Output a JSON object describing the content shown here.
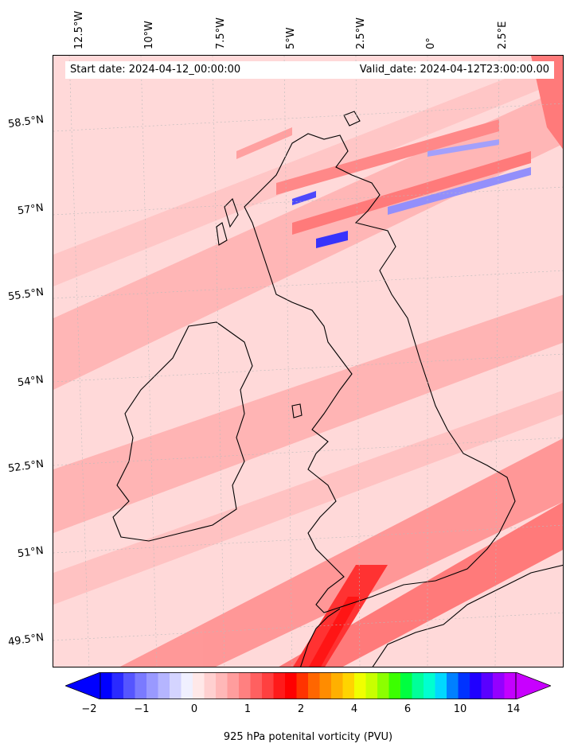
{
  "header": {
    "start_date": "Start date: 2024-04-12_00:00:00",
    "valid_date": "Valid_date: 2024-04-12T23:00:00.00"
  },
  "map": {
    "lon_labels": [
      "12.5°W",
      "10°W",
      "7.5°W",
      "5°W",
      "2.5°W",
      "0°",
      "2.5°E"
    ],
    "lat_labels": [
      "58.5°N",
      "57°N",
      "55.5°N",
      "54°N",
      "52.5°N",
      "51°N",
      "49.5°N"
    ],
    "field": "925 hPa potential vorticity",
    "background_color": "#ffd6d6",
    "coastline_color": "#000000"
  },
  "colorbar": {
    "label": "925 hPa potenital vorticity (PVU)",
    "tick_labels": [
      "−2",
      "−1",
      "0",
      "1",
      "2",
      "4",
      "6",
      "10",
      "14"
    ],
    "colors": [
      "#0000ff",
      "#2a2aff",
      "#5555ff",
      "#7a7aff",
      "#9999ff",
      "#b5b5ff",
      "#d4d4ff",
      "#f0f0ff",
      "#ffe8e8",
      "#ffd0d0",
      "#ffb8b8",
      "#ff9d9d",
      "#ff8080",
      "#ff6060",
      "#ff4040",
      "#ff1a1a",
      "#ff0000",
      "#ff3300",
      "#ff6600",
      "#ff8c00",
      "#ffb000",
      "#ffd400",
      "#f0ff00",
      "#c8ff00",
      "#8cff00",
      "#3cff00",
      "#00ff40",
      "#00ff99",
      "#00ffd0",
      "#00d8ff",
      "#0080ff",
      "#0033ff",
      "#2000ff",
      "#5a00ff",
      "#9400ff",
      "#c400ff"
    ],
    "extend_low_color": "#0000ff",
    "extend_high_color": "#c800ff"
  }
}
